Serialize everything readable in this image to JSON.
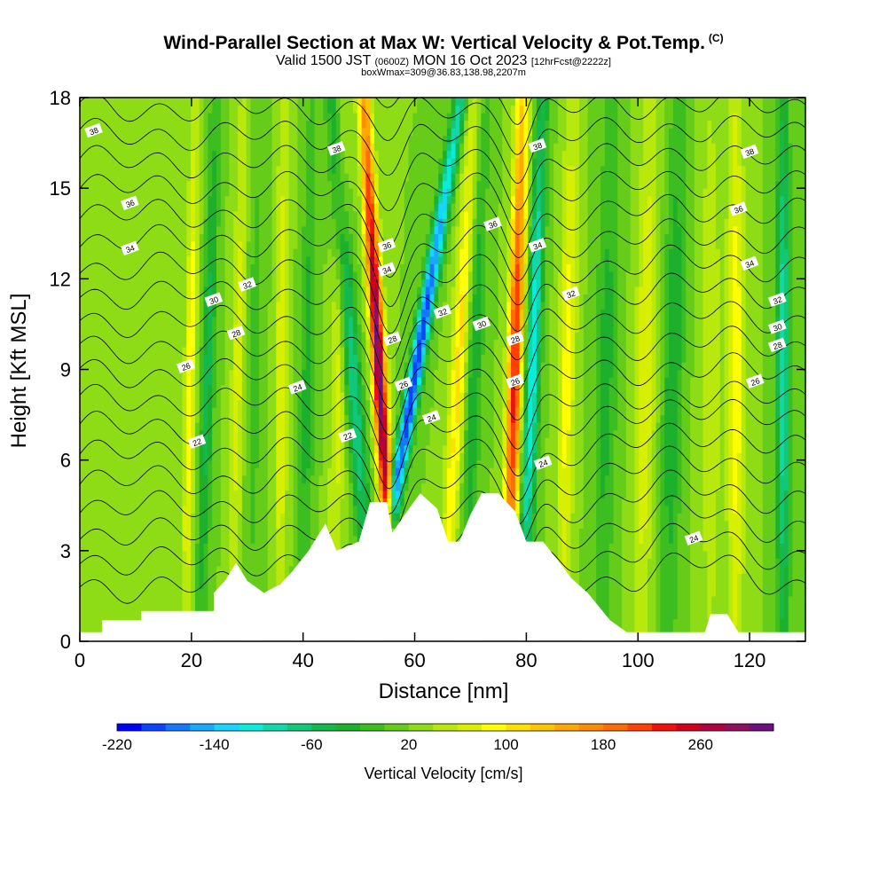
{
  "header": {
    "title": "Wind-Parallel Section at Max W: Vertical Velocity & Pot.Temp.",
    "copyright": "(C)",
    "valid_prefix": "Valid 1500 JST",
    "valid_utc": "(0600Z)",
    "valid_date": "MON 16 Oct 2023",
    "forecast": "[12hrFcst@2222z]",
    "box_info": "boxWmax=309@36.83,138.98,2207m"
  },
  "colorbar": {
    "title": "Vertical Velocity [cm/s]",
    "tick_labels": [
      "-220",
      "-140",
      "-60",
      "20",
      "100",
      "180",
      "260"
    ],
    "tick_values": [
      -220,
      -140,
      -60,
      20,
      100,
      180,
      260
    ],
    "levels_min": -220,
    "levels_step": 20,
    "colors": [
      "#0000ff",
      "#0a44ff",
      "#1478ff",
      "#18a8ff",
      "#18d4ff",
      "#08ecdc",
      "#10d8a8",
      "#10c878",
      "#14b84c",
      "#1cb02c",
      "#3cbe20",
      "#66cc1a",
      "#8edc16",
      "#b8e80c",
      "#d8f000",
      "#ffff00",
      "#ffe000",
      "#ffc400",
      "#ffa800",
      "#ff8c00",
      "#ff6c00",
      "#ff4000",
      "#f01010",
      "#d00020",
      "#b00040",
      "#901060",
      "#6a1080"
    ]
  },
  "chart_data": {
    "type": "heatmap",
    "title": "Wind-Parallel Section at Max W: Vertical Velocity & Pot.Temp.",
    "xlabel": "Distance [nm]",
    "ylabel": "Height [Kft MSL]",
    "xlim": [
      0,
      130
    ],
    "ylim": [
      0,
      18
    ],
    "x_ticks": [
      0,
      20,
      40,
      60,
      80,
      100,
      120
    ],
    "x_tick_labels": [
      "0",
      "20",
      "40",
      "60",
      "80",
      "100",
      "120"
    ],
    "y_ticks": [
      0,
      3,
      6,
      9,
      12,
      15,
      18
    ],
    "y_tick_labels": [
      "0",
      "3",
      "6",
      "9",
      "12",
      "15",
      "18"
    ],
    "background_w": 20,
    "w_bands": [
      {
        "x": 19.5,
        "w": 75,
        "sigma": 1.0,
        "tilt": 0.1
      },
      {
        "x": 22.5,
        "w": -70,
        "sigma": 1.2,
        "tilt": 0.15
      },
      {
        "x": 28,
        "w": 50,
        "sigma": 1.2,
        "tilt": 0.1
      },
      {
        "x": 31,
        "w": -30,
        "sigma": 1.5,
        "tilt": 0.1
      },
      {
        "x": 36,
        "w": 60,
        "sigma": 1.2,
        "tilt": 0.05
      },
      {
        "x": 40.5,
        "w": -50,
        "sigma": 1.4,
        "tilt": 0.1
      },
      {
        "x": 46,
        "w": 50,
        "sigma": 1.4,
        "tilt": 0.1
      },
      {
        "x": 50,
        "w": -100,
        "sigma": 1.5,
        "tilt": -0.4
      },
      {
        "x": 54.5,
        "w": 290,
        "sigma": 1.2,
        "tilt": -0.3
      },
      {
        "x": 57.5,
        "w": -220,
        "sigma": 1.3,
        "tilt": 0.9
      },
      {
        "x": 67,
        "w": 90,
        "sigma": 1.5,
        "tilt": 0.3
      },
      {
        "x": 70,
        "w": -60,
        "sigma": 1.5,
        "tilt": 0.2
      },
      {
        "x": 77.5,
        "w": 210,
        "sigma": 1.3,
        "tilt": 0.15
      },
      {
        "x": 80.5,
        "w": -140,
        "sigma": 1.3,
        "tilt": 0.2
      },
      {
        "x": 87,
        "w": 70,
        "sigma": 1.5,
        "tilt": 0.1
      },
      {
        "x": 94,
        "w": -50,
        "sigma": 2.0,
        "tilt": 0.1
      },
      {
        "x": 101,
        "w": 60,
        "sigma": 1.8,
        "tilt": 0.1
      },
      {
        "x": 106,
        "w": -60,
        "sigma": 1.8,
        "tilt": 0.1
      },
      {
        "x": 113,
        "w": 40,
        "sigma": 1.8,
        "tilt": 0.0
      },
      {
        "x": 117.5,
        "w": 80,
        "sigma": 1.5,
        "tilt": 0.0
      },
      {
        "x": 126,
        "w": -120,
        "sigma": 1.2,
        "tilt": 0.0
      }
    ],
    "terrain": [
      [
        0,
        0.3
      ],
      [
        4,
        0.3
      ],
      [
        4,
        0.7
      ],
      [
        11,
        0.7
      ],
      [
        11,
        1.0
      ],
      [
        24,
        1.0
      ],
      [
        24,
        1.6
      ],
      [
        26,
        2.0
      ],
      [
        28,
        2.6
      ],
      [
        30,
        2.0
      ],
      [
        33,
        1.6
      ],
      [
        36,
        1.9
      ],
      [
        38,
        2.3
      ],
      [
        41,
        3.0
      ],
      [
        44,
        3.9
      ],
      [
        46,
        3.0
      ],
      [
        50,
        3.3
      ],
      [
        52,
        4.6
      ],
      [
        55,
        4.6
      ],
      [
        56,
        3.6
      ],
      [
        59,
        4.4
      ],
      [
        61,
        4.9
      ],
      [
        64,
        4.4
      ],
      [
        66,
        3.3
      ],
      [
        68,
        3.3
      ],
      [
        70,
        4.2
      ],
      [
        72,
        4.9
      ],
      [
        75,
        4.9
      ],
      [
        78,
        4.3
      ],
      [
        80,
        3.3
      ],
      [
        83,
        3.3
      ],
      [
        86,
        2.6
      ],
      [
        88,
        2.1
      ],
      [
        91,
        1.6
      ],
      [
        95,
        0.7
      ],
      [
        98,
        0.3
      ],
      [
        112,
        0.3
      ],
      [
        113,
        0.9
      ],
      [
        116,
        0.9
      ],
      [
        118,
        0.3
      ],
      [
        130,
        0.3
      ]
    ],
    "theta_levels": [
      22,
      24,
      26,
      28,
      30,
      32,
      34,
      36,
      38
    ],
    "theta_labels": [
      {
        "text": "38",
        "x": 2.5,
        "y": 16.9
      },
      {
        "text": "38",
        "x": 46,
        "y": 16.3
      },
      {
        "text": "38",
        "x": 82,
        "y": 16.4
      },
      {
        "text": "38",
        "x": 120,
        "y": 16.2
      },
      {
        "text": "36",
        "x": 9,
        "y": 14.5
      },
      {
        "text": "36",
        "x": 55,
        "y": 13.1
      },
      {
        "text": "36",
        "x": 74,
        "y": 13.8
      },
      {
        "text": "36",
        "x": 118,
        "y": 14.3
      },
      {
        "text": "34",
        "x": 9,
        "y": 13.0
      },
      {
        "text": "34",
        "x": 55,
        "y": 12.3
      },
      {
        "text": "34",
        "x": 82,
        "y": 13.1
      },
      {
        "text": "34",
        "x": 120,
        "y": 12.5
      },
      {
        "text": "32",
        "x": 30,
        "y": 11.8
      },
      {
        "text": "32",
        "x": 65,
        "y": 10.9
      },
      {
        "text": "32",
        "x": 88,
        "y": 11.5
      },
      {
        "text": "32",
        "x": 125,
        "y": 11.3
      },
      {
        "text": "30",
        "x": 24,
        "y": 11.3
      },
      {
        "text": "30",
        "x": 72,
        "y": 10.5
      },
      {
        "text": "30",
        "x": 125,
        "y": 10.4
      },
      {
        "text": "28",
        "x": 28,
        "y": 10.2
      },
      {
        "text": "28",
        "x": 56,
        "y": 10.0
      },
      {
        "text": "28",
        "x": 78,
        "y": 10.0
      },
      {
        "text": "28",
        "x": 125,
        "y": 9.8
      },
      {
        "text": "26",
        "x": 19,
        "y": 9.1
      },
      {
        "text": "26",
        "x": 58,
        "y": 8.5
      },
      {
        "text": "26",
        "x": 78,
        "y": 8.6
      },
      {
        "text": "26",
        "x": 121,
        "y": 8.6
      },
      {
        "text": "24",
        "x": 39,
        "y": 8.4
      },
      {
        "text": "24",
        "x": 63,
        "y": 7.4
      },
      {
        "text": "24",
        "x": 83,
        "y": 5.9
      },
      {
        "text": "24",
        "x": 110,
        "y": 3.4
      },
      {
        "text": "22",
        "x": 21,
        "y": 6.6
      },
      {
        "text": "22",
        "x": 48,
        "y": 6.8
      }
    ]
  }
}
